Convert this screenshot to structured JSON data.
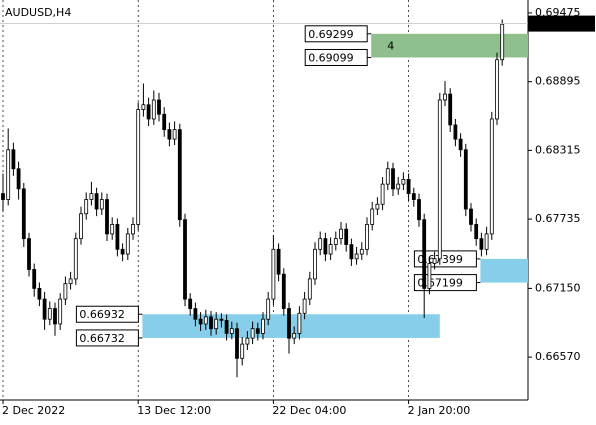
{
  "chart_data": {
    "type": "candlestick",
    "title": "AUDUSD,H4",
    "categories": [
      "2 Dec 2022",
      null,
      null,
      null,
      null,
      null,
      null,
      null,
      null,
      null,
      null,
      null,
      null,
      null,
      null,
      null,
      null,
      null,
      null,
      null,
      null,
      null,
      null,
      null,
      null,
      null,
      "13 Dec 12:00",
      null,
      null,
      null,
      null,
      null,
      null,
      null,
      null,
      null,
      null,
      null,
      null,
      null,
      null,
      null,
      null,
      null,
      null,
      null,
      null,
      null,
      null,
      null,
      null,
      null,
      "22 Dec 04:00",
      null,
      null,
      null,
      null,
      null,
      null,
      null,
      null,
      null,
      null,
      null,
      null,
      null,
      null,
      null,
      null,
      null,
      null,
      null,
      null,
      null,
      null,
      null,
      null,
      null,
      "2 Jan 20:00",
      null,
      null,
      null,
      null,
      null,
      null,
      null,
      null,
      null,
      null,
      null,
      null,
      null,
      null,
      null,
      null,
      null
    ],
    "candles": [
      [
        0.6795,
        0.6812,
        0.678,
        0.679
      ],
      [
        0.679,
        0.685,
        0.6785,
        0.6832
      ],
      [
        0.6832,
        0.6838,
        0.681,
        0.6816
      ],
      [
        0.6816,
        0.6822,
        0.679,
        0.6799
      ],
      [
        0.6799,
        0.6804,
        0.675,
        0.6757
      ],
      [
        0.6757,
        0.6762,
        0.6725,
        0.6731
      ],
      [
        0.6731,
        0.6736,
        0.6708,
        0.6715
      ],
      [
        0.6715,
        0.672,
        0.67,
        0.6706
      ],
      [
        0.6706,
        0.6712,
        0.668,
        0.6689
      ],
      [
        0.6689,
        0.6704,
        0.6684,
        0.6698
      ],
      [
        0.6698,
        0.6703,
        0.6675,
        0.6685
      ],
      [
        0.6685,
        0.6711,
        0.668,
        0.6706
      ],
      [
        0.6706,
        0.6725,
        0.6701,
        0.6719
      ],
      [
        0.6719,
        0.6729,
        0.6714,
        0.6723
      ],
      [
        0.6723,
        0.6762,
        0.6718,
        0.6757
      ],
      [
        0.6757,
        0.6784,
        0.6752,
        0.6778
      ],
      [
        0.6778,
        0.6796,
        0.6773,
        0.679
      ],
      [
        0.679,
        0.6805,
        0.6785,
        0.6795
      ],
      [
        0.6795,
        0.68,
        0.6776,
        0.6782
      ],
      [
        0.6782,
        0.6796,
        0.6777,
        0.679
      ],
      [
        0.679,
        0.6795,
        0.6755,
        0.6761
      ],
      [
        0.6761,
        0.6775,
        0.6756,
        0.6769
      ],
      [
        0.6769,
        0.6774,
        0.6742,
        0.6748
      ],
      [
        0.6748,
        0.6753,
        0.6738,
        0.6744
      ],
      [
        0.6744,
        0.6766,
        0.6739,
        0.6761
      ],
      [
        0.6761,
        0.6775,
        0.6756,
        0.6769
      ],
      [
        0.6769,
        0.6872,
        0.6764,
        0.6866
      ],
      [
        0.6866,
        0.6888,
        0.686,
        0.687
      ],
      [
        0.687,
        0.6876,
        0.6852,
        0.6858
      ],
      [
        0.6858,
        0.6882,
        0.6853,
        0.6874
      ],
      [
        0.6874,
        0.688,
        0.6856,
        0.6862
      ],
      [
        0.6862,
        0.6868,
        0.6843,
        0.6849
      ],
      [
        0.6849,
        0.6855,
        0.6835,
        0.6841
      ],
      [
        0.6841,
        0.6856,
        0.6836,
        0.6849
      ],
      [
        0.6849,
        0.6854,
        0.6767,
        0.6773
      ],
      [
        0.6773,
        0.6778,
        0.67,
        0.6706
      ],
      [
        0.6706,
        0.6711,
        0.6692,
        0.6698
      ],
      [
        0.6698,
        0.6703,
        0.6683,
        0.6689
      ],
      [
        0.6689,
        0.6695,
        0.6679,
        0.6685
      ],
      [
        0.6685,
        0.6697,
        0.668,
        0.6691
      ],
      [
        0.6691,
        0.6696,
        0.6675,
        0.6681
      ],
      [
        0.6681,
        0.6695,
        0.6676,
        0.6689
      ],
      [
        0.6689,
        0.6694,
        0.6682,
        0.6688
      ],
      [
        0.6688,
        0.6693,
        0.6671,
        0.6677
      ],
      [
        0.6677,
        0.6687,
        0.6672,
        0.6681
      ],
      [
        0.6681,
        0.6686,
        0.664,
        0.6656
      ],
      [
        0.6656,
        0.6674,
        0.665,
        0.6668
      ],
      [
        0.6668,
        0.6679,
        0.6663,
        0.6673
      ],
      [
        0.6673,
        0.6687,
        0.6668,
        0.6681
      ],
      [
        0.6681,
        0.6686,
        0.6671,
        0.6677
      ],
      [
        0.6677,
        0.6695,
        0.6672,
        0.6689
      ],
      [
        0.6689,
        0.6712,
        0.6684,
        0.6706
      ],
      [
        0.6706,
        0.676,
        0.6701,
        0.6748
      ],
      [
        0.6748,
        0.6753,
        0.6721,
        0.6727
      ],
      [
        0.6727,
        0.6732,
        0.6692,
        0.6698
      ],
      [
        0.6698,
        0.6703,
        0.666,
        0.6673
      ],
      [
        0.6673,
        0.6683,
        0.6668,
        0.6677
      ],
      [
        0.6677,
        0.67,
        0.6672,
        0.6694
      ],
      [
        0.6694,
        0.6712,
        0.6689,
        0.6706
      ],
      [
        0.6706,
        0.6729,
        0.6701,
        0.6723
      ],
      [
        0.6723,
        0.6754,
        0.6718,
        0.6748
      ],
      [
        0.6748,
        0.6763,
        0.6743,
        0.6757
      ],
      [
        0.6757,
        0.6762,
        0.6738,
        0.6744
      ],
      [
        0.6744,
        0.6758,
        0.6739,
        0.6752
      ],
      [
        0.6752,
        0.6763,
        0.6747,
        0.6757
      ],
      [
        0.6757,
        0.6771,
        0.6752,
        0.6765
      ],
      [
        0.6765,
        0.677,
        0.6746,
        0.6752
      ],
      [
        0.6752,
        0.6757,
        0.6734,
        0.674
      ],
      [
        0.674,
        0.675,
        0.6735,
        0.6744
      ],
      [
        0.6744,
        0.6754,
        0.6739,
        0.6748
      ],
      [
        0.6748,
        0.6775,
        0.6743,
        0.6769
      ],
      [
        0.6769,
        0.6788,
        0.6764,
        0.6782
      ],
      [
        0.6782,
        0.6792,
        0.6777,
        0.6786
      ],
      [
        0.6786,
        0.6809,
        0.6781,
        0.6803
      ],
      [
        0.6803,
        0.6822,
        0.6798,
        0.6816
      ],
      [
        0.6816,
        0.6821,
        0.6793,
        0.6799
      ],
      [
        0.6799,
        0.6809,
        0.6794,
        0.6803
      ],
      [
        0.6803,
        0.6813,
        0.6798,
        0.6807
      ],
      [
        0.6807,
        0.6812,
        0.6789,
        0.6795
      ],
      [
        0.6795,
        0.68,
        0.6784,
        0.679
      ],
      [
        0.679,
        0.6795,
        0.6767,
        0.6773
      ],
      [
        0.6773,
        0.6778,
        0.669,
        0.6715
      ],
      [
        0.6715,
        0.6742,
        0.671,
        0.6736
      ],
      [
        0.6736,
        0.6746,
        0.6731,
        0.674
      ],
      [
        0.674,
        0.688,
        0.6735,
        0.6874
      ],
      [
        0.6874,
        0.689,
        0.6869,
        0.6879
      ],
      [
        0.6879,
        0.6884,
        0.6847,
        0.6853
      ],
      [
        0.6853,
        0.6858,
        0.6835,
        0.6841
      ],
      [
        0.6841,
        0.6846,
        0.6826,
        0.6832
      ],
      [
        0.6832,
        0.6837,
        0.6776,
        0.6782
      ],
      [
        0.6782,
        0.6787,
        0.6763,
        0.6769
      ],
      [
        0.6769,
        0.6774,
        0.6751,
        0.6757
      ],
      [
        0.6757,
        0.6762,
        0.6742,
        0.6748
      ],
      [
        0.6748,
        0.6767,
        0.6743,
        0.6761
      ],
      [
        0.6761,
        0.6864,
        0.6756,
        0.6858
      ],
      [
        0.6858,
        0.6914,
        0.6853,
        0.6908
      ],
      [
        0.6908,
        0.6942,
        0.6903,
        0.6938
      ]
    ],
    "last_price": 0.69385,
    "zones": [
      {
        "top": 0.69299,
        "bottom": 0.69099,
        "start": 71,
        "color": "#8fbf8c",
        "label": "4"
      },
      {
        "top": 0.66932,
        "bottom": 0.66732,
        "start": 27,
        "end": 84,
        "color": "#87ceeb"
      },
      {
        "top": 0.67399,
        "bottom": 0.67199,
        "start": 92,
        "color": "#87ceeb"
      }
    ],
    "ylim": [
      0.66225,
      0.69542
    ],
    "yticks": [
      0.69475,
      0.68895,
      0.68315,
      0.67735,
      {
        "value": 0.6715,
        "label": "0.67150"
      },
      {
        "value": 0.6657,
        "label": "0.66570"
      }
    ],
    "up_color": "#ffffff",
    "down_color": "#000000"
  }
}
